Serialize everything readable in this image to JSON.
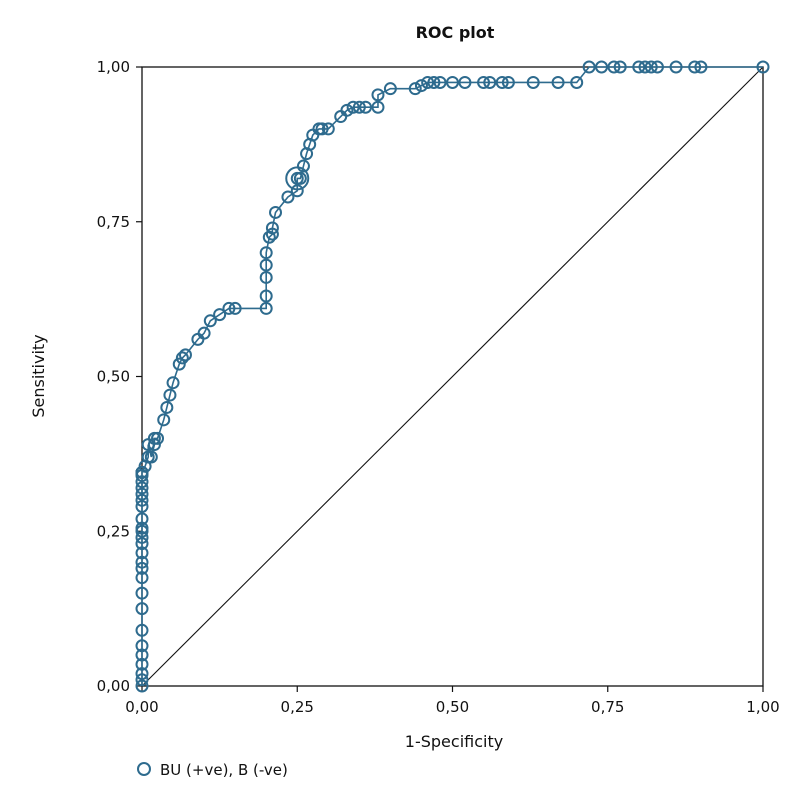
{
  "chart_data": {
    "type": "line",
    "title": "ROC plot",
    "xlabel": "1-Specificity",
    "ylabel": "Sensitivity",
    "xlim": [
      0,
      1
    ],
    "ylim": [
      0,
      1
    ],
    "x_ticks": [
      "0,00",
      "0,25",
      "0,50",
      "0,75",
      "1,00"
    ],
    "y_ticks": [
      "0,00",
      "0,25",
      "0,50",
      "0,75",
      "1,00"
    ],
    "grid": false,
    "legend_position": "bottom-left",
    "colors": {
      "series": "#2e6b8e",
      "diagonal": "#111111",
      "frame": "#111111"
    },
    "diagonal": {
      "x": [
        0,
        1
      ],
      "y": [
        0,
        1
      ]
    },
    "highlight_point": {
      "x": 0.25,
      "y": 0.82
    },
    "series": [
      {
        "name": "BU (+ve), B (-ve)",
        "marker": "circle-open",
        "x": [
          0.0,
          0.0,
          0.0,
          0.0,
          0.0,
          0.0,
          0.0,
          0.0,
          0.0,
          0.0,
          0.0,
          0.0,
          0.0,
          0.0,
          0.0,
          0.0,
          0.0,
          0.0,
          0.0,
          0.0,
          0.0,
          0.0,
          0.0,
          0.0,
          0.0,
          0.0,
          0.0,
          0.0,
          0.0,
          0.0,
          0.005,
          0.01,
          0.01,
          0.015,
          0.02,
          0.02,
          0.025,
          0.035,
          0.04,
          0.045,
          0.05,
          0.06,
          0.065,
          0.07,
          0.09,
          0.1,
          0.11,
          0.125,
          0.14,
          0.15,
          0.2,
          0.2,
          0.2,
          0.2,
          0.2,
          0.205,
          0.21,
          0.21,
          0.215,
          0.235,
          0.25,
          0.25,
          0.255,
          0.26,
          0.265,
          0.27,
          0.275,
          0.285,
          0.29,
          0.3,
          0.32,
          0.33,
          0.34,
          0.35,
          0.36,
          0.38,
          0.38,
          0.4,
          0.44,
          0.45,
          0.46,
          0.47,
          0.48,
          0.5,
          0.52,
          0.55,
          0.56,
          0.58,
          0.59,
          0.63,
          0.67,
          0.7,
          0.72,
          0.74,
          0.76,
          0.77,
          0.8,
          0.81,
          0.82,
          0.83,
          0.86,
          0.89,
          0.9,
          1.0
        ],
        "y": [
          0.0,
          0.01,
          0.02,
          0.035,
          0.05,
          0.065,
          0.09,
          0.125,
          0.15,
          0.175,
          0.19,
          0.2,
          0.215,
          0.23,
          0.24,
          0.25,
          0.255,
          0.27,
          0.29,
          0.3,
          0.31,
          0.32,
          0.33,
          0.34,
          0.345,
          0.345,
          0.345,
          0.345,
          0.345,
          0.345,
          0.355,
          0.37,
          0.39,
          0.37,
          0.39,
          0.4,
          0.4,
          0.43,
          0.45,
          0.47,
          0.49,
          0.52,
          0.53,
          0.535,
          0.56,
          0.57,
          0.59,
          0.6,
          0.61,
          0.61,
          0.61,
          0.63,
          0.66,
          0.68,
          0.7,
          0.725,
          0.73,
          0.74,
          0.765,
          0.79,
          0.8,
          0.82,
          0.82,
          0.84,
          0.86,
          0.875,
          0.89,
          0.9,
          0.9,
          0.9,
          0.92,
          0.93,
          0.935,
          0.935,
          0.935,
          0.935,
          0.955,
          0.965,
          0.965,
          0.97,
          0.975,
          0.975,
          0.975,
          0.975,
          0.975,
          0.975,
          0.975,
          0.975,
          0.975,
          0.975,
          0.975,
          0.975,
          1.0,
          1.0,
          1.0,
          1.0,
          1.0,
          1.0,
          1.0,
          1.0,
          1.0,
          1.0,
          1.0,
          1.0
        ]
      }
    ]
  }
}
